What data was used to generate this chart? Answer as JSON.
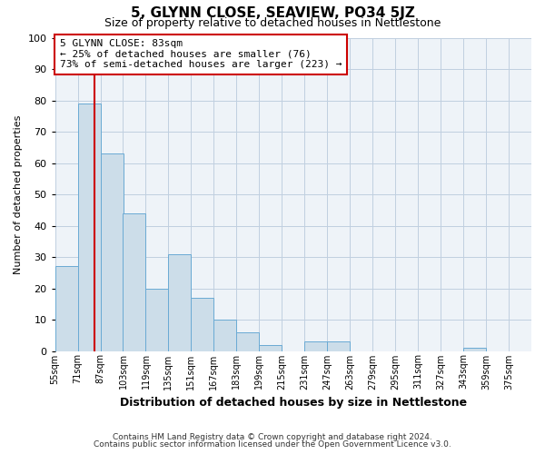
{
  "title": "5, GLYNN CLOSE, SEAVIEW, PO34 5JZ",
  "subtitle": "Size of property relative to detached houses in Nettlestone",
  "xlabel": "Distribution of detached houses by size in Nettlestone",
  "ylabel": "Number of detached properties",
  "bar_values": [
    27,
    79,
    63,
    44,
    20,
    31,
    17,
    10,
    6,
    2,
    0,
    3,
    3,
    0,
    0,
    0,
    0,
    0,
    1,
    0
  ],
  "bin_starts": [
    55,
    71,
    87,
    103,
    119,
    135,
    151,
    167,
    183,
    199,
    215,
    231,
    247,
    263,
    279,
    295,
    311,
    327,
    343,
    359
  ],
  "bin_width": 16,
  "tick_labels": [
    "55sqm",
    "71sqm",
    "87sqm",
    "103sqm",
    "119sqm",
    "135sqm",
    "151sqm",
    "167sqm",
    "183sqm",
    "199sqm",
    "215sqm",
    "231sqm",
    "247sqm",
    "263sqm",
    "279sqm",
    "295sqm",
    "311sqm",
    "327sqm",
    "343sqm",
    "359sqm",
    "375sqm"
  ],
  "bar_color": "#ccdde9",
  "bar_edge_color": "#6aaad4",
  "vline_x": 83,
  "vline_color": "#cc0000",
  "ylim": [
    0,
    100
  ],
  "xlim_left": 55,
  "xlim_right": 391,
  "annotation_title": "5 GLYNN CLOSE: 83sqm",
  "annotation_line1": "← 25% of detached houses are smaller (76)",
  "annotation_line2": "73% of semi-detached houses are larger (223) →",
  "annotation_box_color": "#cc0000",
  "footer1": "Contains HM Land Registry data © Crown copyright and database right 2024.",
  "footer2": "Contains public sector information licensed under the Open Government Licence v3.0.",
  "plot_bg_color": "#eef3f8",
  "grid_color": "#c0cfe0"
}
